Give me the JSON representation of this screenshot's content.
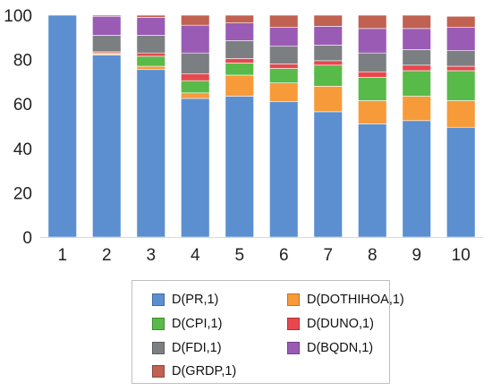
{
  "chart_data": {
    "type": "bar",
    "stacked": true,
    "title": "",
    "xlabel": "",
    "ylabel": "",
    "categories": [
      "1",
      "2",
      "3",
      "4",
      "5",
      "6",
      "7",
      "8",
      "9",
      "10"
    ],
    "ylim": [
      0,
      100
    ],
    "yticks": [
      "0",
      "20",
      "40",
      "60",
      "80",
      "100"
    ],
    "grid": false,
    "legend_position": "bottom",
    "series": [
      {
        "name": "D(PR,1)",
        "color": "#5b8fd0",
        "values": [
          100,
          82,
          75.5,
          62.5,
          63.5,
          61,
          56.5,
          51,
          52.5,
          49.5
        ]
      },
      {
        "name": "D(DOTHIHOA,1)",
        "color": "#f79a3a",
        "values": [
          0,
          0.5,
          1.5,
          2.5,
          9.5,
          8.5,
          11.5,
          10.5,
          11,
          12
        ]
      },
      {
        "name": "D(CPI,1)",
        "color": "#58ba48",
        "values": [
          0,
          0.5,
          4.5,
          5.5,
          5.5,
          6.5,
          9.5,
          10.5,
          11.5,
          13.5
        ]
      },
      {
        "name": "D(DUNO,1)",
        "color": "#e9474e",
        "values": [
          0,
          0.5,
          1.5,
          3,
          2,
          2,
          2,
          2.5,
          2.5,
          2
        ]
      },
      {
        "name": "D(FDI,1)",
        "color": "#7b7f81",
        "values": [
          0,
          7.5,
          8,
          9.5,
          8,
          8,
          7,
          8.5,
          7,
          7
        ]
      },
      {
        "name": "D(BQDN,1)",
        "color": "#9a5bb5",
        "values": [
          0,
          8.5,
          8,
          12.5,
          8,
          8.5,
          8.5,
          11,
          9.5,
          10.5
        ]
      },
      {
        "name": "D(GRDP,1)",
        "color": "#c06151",
        "values": [
          0,
          0.5,
          1,
          4.5,
          3.5,
          5.5,
          5,
          6,
          6,
          5
        ]
      }
    ]
  }
}
